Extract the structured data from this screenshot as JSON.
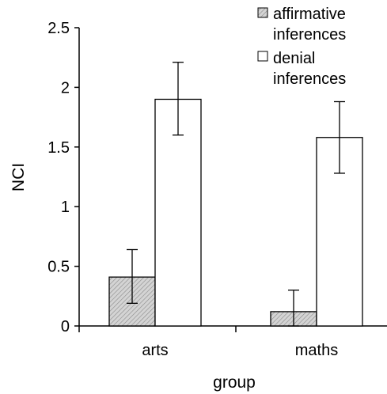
{
  "chart_data": {
    "type": "bar",
    "title": "",
    "xlabel": "group",
    "ylabel": "NCI",
    "categories": [
      "arts",
      "maths"
    ],
    "ylim": [
      0,
      2.5
    ],
    "yticks": [
      0,
      0.5,
      1,
      1.5,
      2,
      2.5
    ],
    "ytick_labels": [
      "0",
      "0.5",
      "1",
      "1.5",
      "2",
      "2.5"
    ],
    "series": [
      {
        "name": "affirmative inferences",
        "legend_lines": [
          "affirmative",
          "inferences"
        ],
        "pattern": "hatched",
        "color": "#d9d9d9",
        "values": [
          0.41,
          0.12
        ],
        "error_low": [
          0.19,
          0.0
        ],
        "error_high": [
          0.64,
          0.3
        ]
      },
      {
        "name": "denial inferences",
        "legend_lines": [
          "denial",
          "inferences"
        ],
        "pattern": "solid",
        "color": "#ffffff",
        "values": [
          1.9,
          1.58
        ],
        "error_low": [
          1.6,
          1.28
        ],
        "error_high": [
          2.21,
          1.88
        ]
      }
    ],
    "legend_position": "top-right",
    "grid": false
  }
}
